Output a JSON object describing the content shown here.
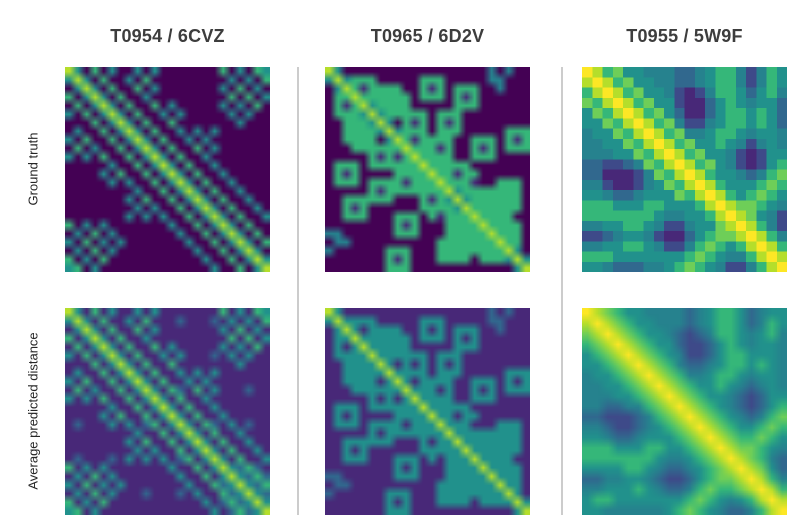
{
  "figure": {
    "background_color": "#ffffff",
    "header_text_color": "#3d3d3d",
    "row_label_color": "#262626",
    "separator_color": "#cccccc"
  },
  "columns": [
    {
      "label": "T0954 / 6CVZ",
      "target": "T0954",
      "pdb_id": "6CVZ"
    },
    {
      "label": "T0965 / 6D2V",
      "target": "T0965",
      "pdb_id": "6D2V"
    },
    {
      "label": "T0955 / 5W9F",
      "target": "T0955",
      "pdb_id": "5W9F"
    }
  ],
  "rows": [
    {
      "label": "Ground truth"
    },
    {
      "label": "Average predicted distance"
    }
  ],
  "colormap": {
    "name": "viridis",
    "stops": [
      "#440154",
      "#482878",
      "#3e4a89",
      "#31688e",
      "#26828e",
      "#21918c",
      "#35b779",
      "#6ece58",
      "#b5de2b",
      "#fde725"
    ]
  },
  "chart_data": [
    {
      "type": "heatmap",
      "column": "T0954 / 6CVZ",
      "row": "Ground truth",
      "n": 24,
      "render": "smooth",
      "cells": [
        "850605005050000000605065",
        "585060050600000000050506",
        "058506006050000000506050",
        "605850600500000000060605",
        "060585060060500000505060",
        "506058506005050000050500",
        "000605850600600000005000",
        "050060585060050505000000",
        "506006058506005050000000",
        "060500605850600605000000",
        "505060060585060050000000",
        "000005006058506005000000",
        "000050600605850600500000",
        "000005050060585060050000",
        "000000005006058506005000",
        "000000050600605850600500",
        "000000005050060585060050",
        "000000050505006058506005",
        "605050000000500605850600",
        "050605000000050060585060",
        "506050500000005006058506",
        "050605000000000500605850",
        "605060000000000050060585",
        "560500000000000005006058"
      ]
    },
    {
      "type": "heatmap",
      "column": "T0965 / 6D2V",
      "row": "Ground truth",
      "n": 24,
      "render": "smooth",
      "cells": [
        "850000000000000000040400",
        "585666000006660000044000",
        "058616000006160000004000",
        "006866066606660000000000",
        "000685061600000000000000",
        "000058566600066600000000",
        "006660850000061600000000",
        "006160085666066600000000",
        "006660058616000006660000",
        "000006665866000006160000",
        "000006160586660006660000",
        "000006660058566660000000",
        "000000006666866160000000",
        "000000006160586660006660",
        "000000006660058506666160",
        "006660000000005856166660",
        "006160000000666586660000",
        "006660000000616668500000",
        "000000000000000616856660",
        "000000000000000666686160",
        "000000000000006666168660",
        "000000066600006166665850",
        "000000061600006660000585",
        "000000066600000000000058"
      ]
    },
    {
      "type": "heatmap",
      "column": "T0955 / 5W9F",
      "row": "Ground truth",
      "n": 20,
      "render": "pixelated",
      "cells": [
        "98675544433456642465",
        "89867554433456642465",
        "68986755421246653564",
        "76898675521135654553",
        "57689867531135665653",
        "55768986742245665653",
        "45576898674456654554",
        "44557689867556542454",
        "44455768986755421255",
        "33223476898675421256",
        "33111247689865543467",
        "44211245768986555676",
        "55433455576898656765",
        "66655566555689877654",
        "66666665445568987542",
        "44556654224557898642",
        "22345542113567789864",
        "44556654224676568986",
        "66655555556765446898",
        "55433344567654224689"
      ]
    },
    {
      "type": "heatmap",
      "column": "T0954 / 6CVZ",
      "row": "Average predicted distance",
      "n": 24,
      "render": "smooth",
      "cells": [
        "851615115151111111615165",
        "585161151611131113151516",
        "158516116151111111516151",
        "615851611511111111161615",
        "161585161161511111515161",
        "516158516115151113151511",
        "111615851611611111115111",
        "151161585161151515111111",
        "516116158516115151111111",
        "161511615851631615111311",
        "515161161585161151111111",
        "111115116158516115111111",
        "111151611615851611511111",
        "131115151161585163151311",
        "111111115116158516115111",
        "111111151611615851611511",
        "111111115151161585161151",
        "131113151515116158516115",
        "615151111111511615853631",
        "151615111111151161585361",
        "516151511111115116358536",
        "151615111111111511635853",
        "615161111111111151363585",
        "561511111111111115136358"
      ]
    },
    {
      "type": "heatmap",
      "column": "T0965 / 6D2V",
      "row": "Average predicted distance",
      "n": 24,
      "render": "smooth",
      "cells": [
        "851111111111111111131311",
        "585555111115551111133111",
        "158515111115151111113111",
        "115855155515551111111111",
        "111585151511111111111111",
        "111158555511155511111111",
        "115551851111151511111111",
        "115151185555155511111111",
        "115551158515111115551111",
        "111115555855111115151111",
        "111115151585551115551111",
        "111115551158555551111111",
        "111111115555855151111111",
        "111111115151585551115551",
        "111111115551158515555151",
        "115551111111115855155551",
        "115151111111555585551111",
        "115551111111515558511111",
        "111111111111111515855551",
        "111111111111111555585151",
        "111111111111115555158551",
        "111111155511115155555851",
        "111111151511115551111585",
        "111111155511111111111158"
      ]
    },
    {
      "type": "heatmap",
      "column": "T0955 / 5W9F",
      "row": "Average predicted distance",
      "n": 20,
      "render": "smooth",
      "cells": [
        "98765544443455653455",
        "89876554443456653455",
        "78987655432346654554",
        "67898765532235654554",
        "56789876542235665554",
        "55678987643345665654",
        "45567898764456654554",
        "44556789876556543454",
        "44455678987655432355",
        "43334467898765432356",
        "33222346789876543467",
        "44322345678987655676",
        "55433455567898766765",
        "66655566556789877654",
        "66666665445678987643",
        "45556654334567898753",
        "33445543223567789864",
        "44555654334676678986",
        "56655555556765456898",
        "55444444567654334689"
      ]
    }
  ]
}
